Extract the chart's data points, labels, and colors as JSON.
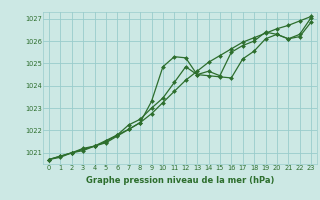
{
  "title": "Graphe pression niveau de la mer (hPa)",
  "background_color": "#cce8e4",
  "grid_color": "#99cccc",
  "line_color": "#2d6e2d",
  "xlim": [
    -0.5,
    23.5
  ],
  "ylim": [
    1020.5,
    1027.3
  ],
  "yticks": [
    1021,
    1022,
    1023,
    1024,
    1025,
    1026,
    1027
  ],
  "xticks": [
    0,
    1,
    2,
    3,
    4,
    5,
    6,
    7,
    8,
    9,
    10,
    11,
    12,
    13,
    14,
    15,
    16,
    17,
    18,
    19,
    20,
    21,
    22,
    23
  ],
  "series": [
    {
      "x": [
        0,
        1,
        2,
        3,
        4,
        5,
        6,
        7,
        8,
        9,
        10,
        11,
        12,
        13,
        14,
        15,
        16,
        17,
        18,
        19,
        20,
        21,
        22,
        23
      ],
      "y": [
        1020.7,
        1020.85,
        1021.0,
        1021.15,
        1021.3,
        1021.55,
        1021.8,
        1022.05,
        1022.35,
        1023.3,
        1024.85,
        1025.3,
        1025.25,
        1024.5,
        1024.45,
        1024.4,
        1024.35,
        1025.2,
        1025.55,
        1026.1,
        1026.3,
        1026.1,
        1026.2,
        1026.85
      ]
    },
    {
      "x": [
        0,
        1,
        2,
        3,
        4,
        5,
        6,
        7,
        8,
        9,
        10,
        11,
        12,
        13,
        14,
        15,
        16,
        17,
        18,
        19,
        20,
        21,
        22,
        23
      ],
      "y": [
        1020.7,
        1020.85,
        1021.0,
        1021.2,
        1021.3,
        1021.5,
        1021.8,
        1022.25,
        1022.5,
        1023.0,
        1023.45,
        1024.15,
        1024.85,
        1024.5,
        1024.65,
        1024.45,
        1025.5,
        1025.8,
        1026.0,
        1026.4,
        1026.3,
        1026.1,
        1026.3,
        1027.05
      ]
    },
    {
      "x": [
        0,
        1,
        2,
        3,
        4,
        5,
        6,
        7,
        8,
        9,
        10,
        11,
        12,
        13,
        14,
        15,
        16,
        17,
        18,
        19,
        20,
        21,
        22,
        23
      ],
      "y": [
        1020.7,
        1020.8,
        1021.0,
        1021.1,
        1021.3,
        1021.45,
        1021.75,
        1022.05,
        1022.35,
        1022.75,
        1023.25,
        1023.75,
        1024.25,
        1024.65,
        1025.05,
        1025.35,
        1025.65,
        1025.95,
        1026.15,
        1026.35,
        1026.55,
        1026.7,
        1026.9,
        1027.1
      ]
    }
  ],
  "figsize": [
    3.2,
    2.0
  ],
  "dpi": 100,
  "title_fontsize": 6.0,
  "tick_fontsize": 4.8,
  "linewidth": 0.9,
  "markersize": 2.0
}
